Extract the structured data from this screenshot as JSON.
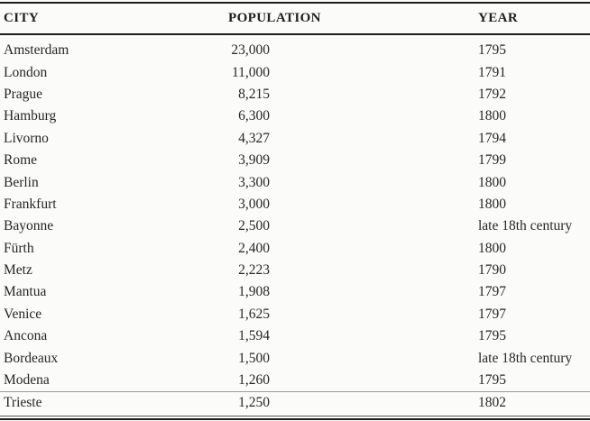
{
  "page": {
    "background_color": "#fbfbf9",
    "text_color": "#262626",
    "rule_color": "#1e1e1e"
  },
  "table": {
    "columns": [
      "CITY",
      "POPULATION",
      "YEAR"
    ],
    "rows": [
      {
        "city": "Amsterdam",
        "population": "23,000",
        "year": "1795"
      },
      {
        "city": "London",
        "population": "11,000",
        "year": "1791"
      },
      {
        "city": "Prague",
        "population": "8,215",
        "year": "1792"
      },
      {
        "city": "Hamburg",
        "population": "6,300",
        "year": "1800"
      },
      {
        "city": "Livorno",
        "population": "4,327",
        "year": "1794"
      },
      {
        "city": "Rome",
        "population": "3,909",
        "year": "1799"
      },
      {
        "city": "Berlin",
        "population": "3,300",
        "year": "1800"
      },
      {
        "city": "Frankfurt",
        "population": "3,000",
        "year": "1800"
      },
      {
        "city": "Bayonne",
        "population": "2,500",
        "year": "late 18th century"
      },
      {
        "city": "Fürth",
        "population": "2,400",
        "year": "1800"
      },
      {
        "city": "Metz",
        "population": "2,223",
        "year": "1790"
      },
      {
        "city": "Mantua",
        "population": "1,908",
        "year": "1797"
      },
      {
        "city": "Venice",
        "population": "1,625",
        "year": "1797"
      },
      {
        "city": "Ancona",
        "population": "1,594",
        "year": "1795"
      },
      {
        "city": "Bordeaux",
        "population": "1,500",
        "year": "late 18th century"
      },
      {
        "city": "Modena",
        "population": "1,260",
        "year": "1795"
      },
      {
        "city": "Trieste",
        "population": "1,250",
        "year": "1802"
      }
    ]
  }
}
